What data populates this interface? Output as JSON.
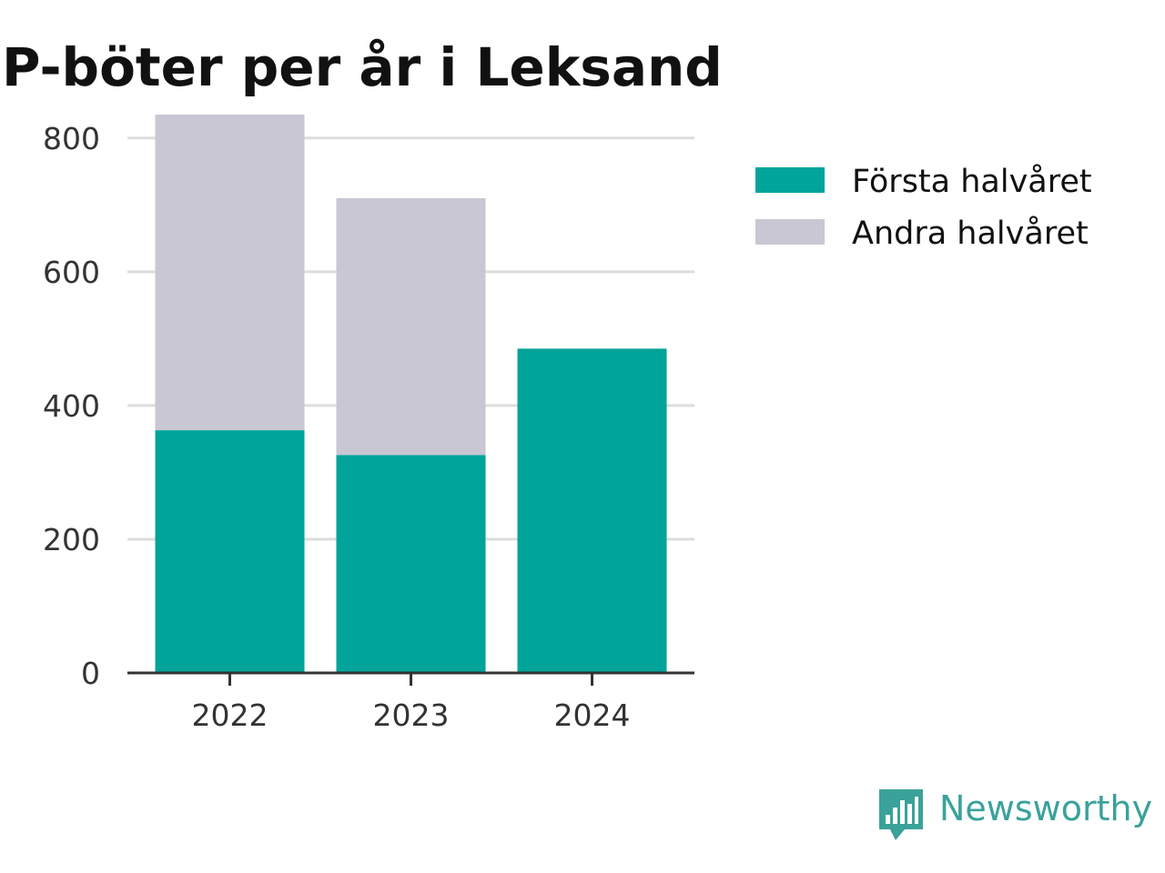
{
  "chart_data": {
    "type": "bar",
    "stacked": true,
    "title": "P-böter per år i Leksand",
    "xlabel": "",
    "ylabel": "",
    "categories": [
      "2022",
      "2023",
      "2024"
    ],
    "series": [
      {
        "name": "Första halvåret",
        "values": [
          363,
          326,
          485
        ],
        "color": "#00a49a"
      },
      {
        "name": "Andra halvåret",
        "values": [
          472,
          384,
          0
        ],
        "color": "#c8c7d3"
      }
    ],
    "ylim": [
      0,
      850
    ],
    "yticks": [
      0,
      200,
      400,
      600,
      800
    ],
    "grid": true,
    "legend_position": "top-right"
  },
  "brand": {
    "name": "Newsworthy",
    "icon": "newsworthy-logo-icon",
    "color": "#3aa29a"
  }
}
